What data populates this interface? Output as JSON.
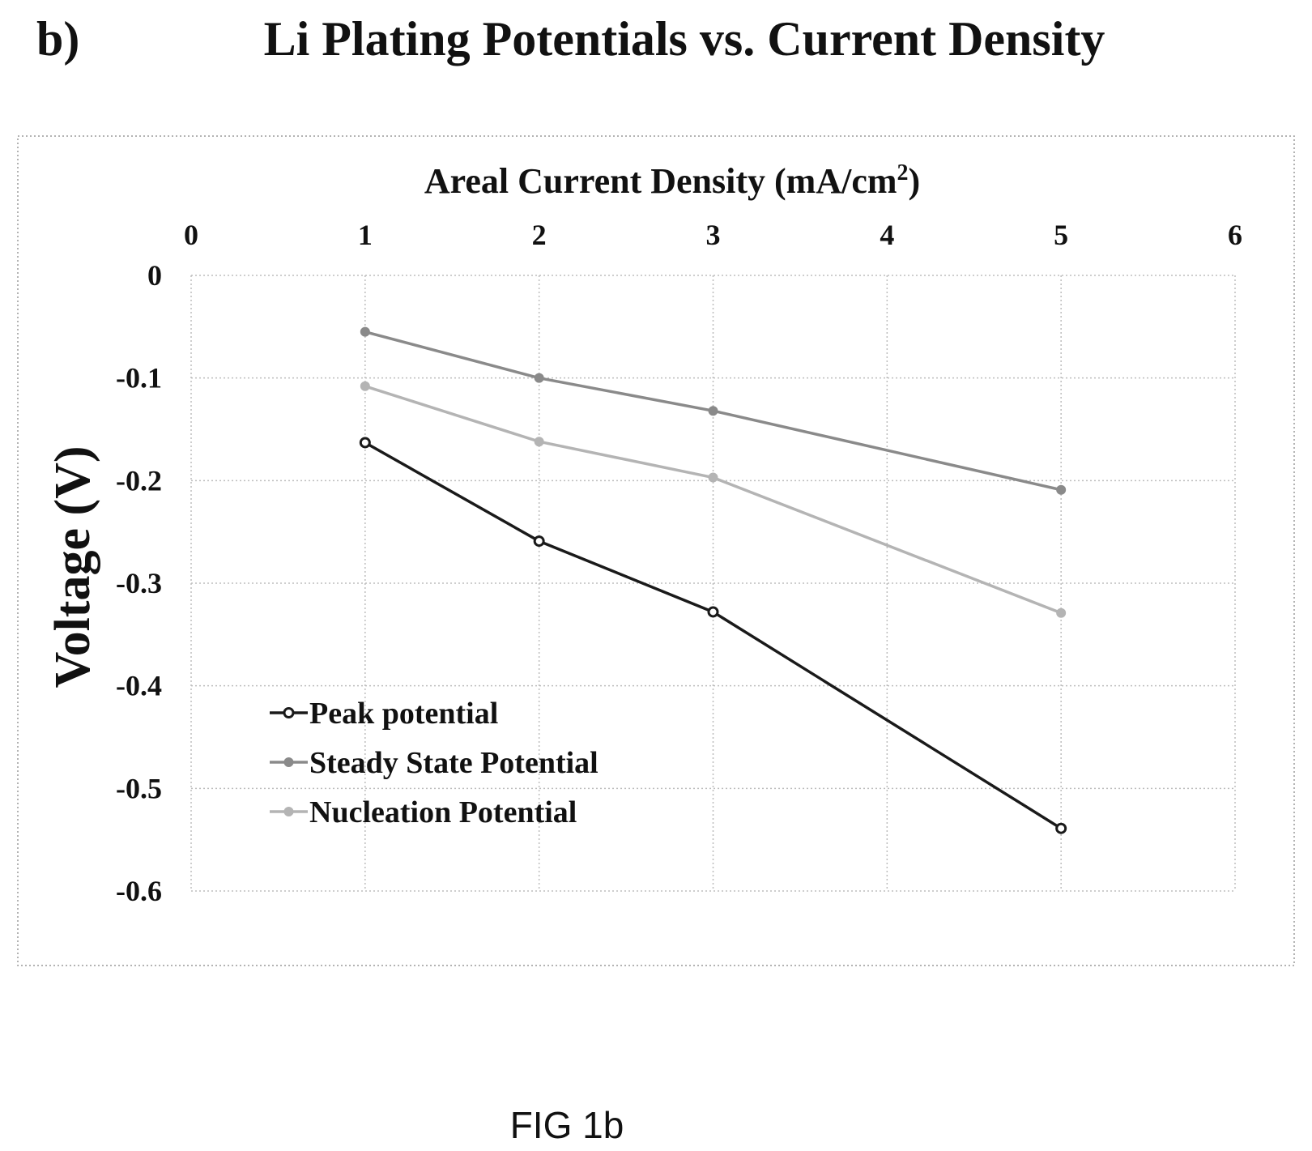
{
  "panel_label": "b)",
  "title": "Li Plating Potentials vs. Current Density",
  "caption": "FIG 1b",
  "chart_data": {
    "type": "line",
    "title": "Li Plating Potentials vs. Current Density",
    "xlabel": "Areal Current Density (mA/cm²)",
    "xlabel_main": "Areal Current Density (mA/cm",
    "xlabel_sup": "2",
    "xlabel_close": ")",
    "ylabel": "Voltage (V)",
    "xlim": [
      0,
      6
    ],
    "ylim": [
      -0.6,
      0
    ],
    "xticks": [
      0,
      1,
      2,
      3,
      4,
      5,
      6
    ],
    "yticks": [
      0,
      -0.1,
      -0.2,
      -0.3,
      -0.4,
      -0.5,
      -0.6
    ],
    "xtick_labels": [
      "0",
      "1",
      "2",
      "3",
      "4",
      "5",
      "6"
    ],
    "ytick_labels": [
      "0",
      "-0.1",
      "-0.2",
      "-0.3",
      "-0.4",
      "-0.5",
      "-0.6"
    ],
    "x_axis_position": "top",
    "grid": true,
    "legend_position": "lower-left",
    "series": [
      {
        "name": "Peak potential",
        "color": "#1a1a1a",
        "marker": "hollow-circle",
        "x": [
          1,
          2,
          3,
          5
        ],
        "y": [
          -0.163,
          -0.259,
          -0.328,
          -0.539
        ]
      },
      {
        "name": "Steady State Potential",
        "color": "#8a8a8a",
        "marker": "filled-circle",
        "x": [
          1,
          2,
          3,
          5
        ],
        "y": [
          -0.055,
          -0.1,
          -0.132,
          -0.209
        ]
      },
      {
        "name": "Nucleation Potential",
        "color": "#b4b4b4",
        "marker": "filled-circle",
        "x": [
          1,
          2,
          3,
          5
        ],
        "y": [
          -0.108,
          -0.162,
          -0.197,
          -0.329
        ]
      }
    ]
  }
}
